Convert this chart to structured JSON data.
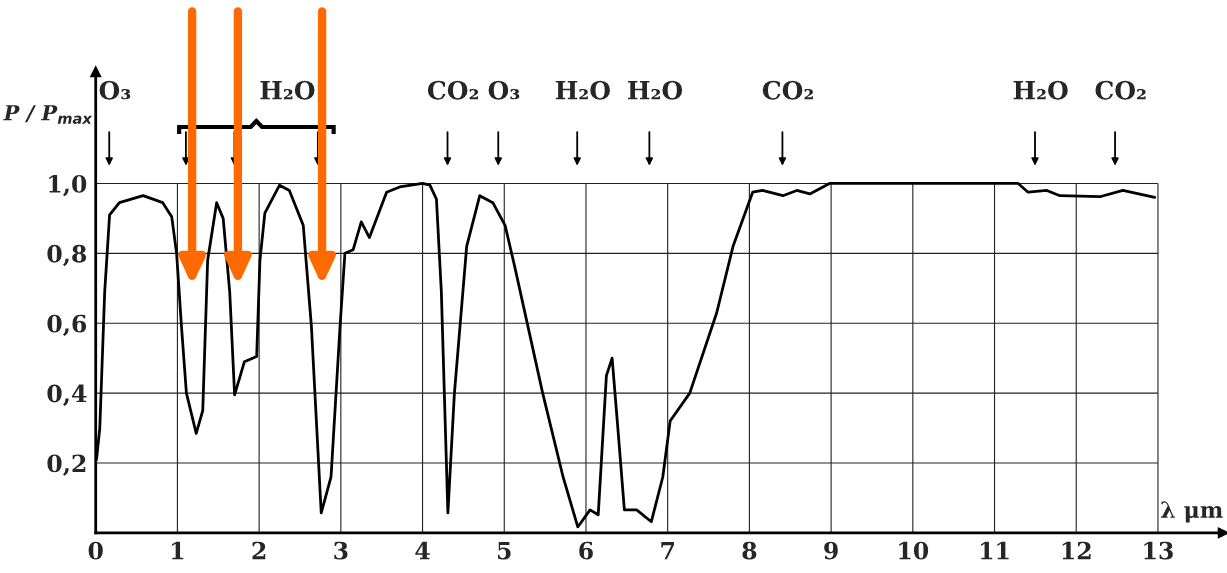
{
  "chart_data": {
    "type": "line",
    "ylabel": "P / P$_{max}$",
    "xlabel": "λ μm",
    "series": [
      {
        "color": "#000000",
        "x": [
          0.01,
          0.05,
          0.11,
          0.17,
          0.29,
          0.58,
          0.82,
          0.93,
          0.99,
          1.05,
          1.11,
          1.23,
          1.31,
          1.37,
          1.48,
          1.56,
          1.64,
          1.7,
          1.82,
          1.97,
          2.01,
          2.07,
          2.25,
          2.37,
          2.54,
          2.64,
          2.76,
          2.88,
          2.99,
          3.05,
          3.15,
          3.25,
          3.35,
          3.56,
          3.72,
          4.0,
          4.09,
          4.17,
          4.23,
          4.31,
          4.39,
          4.54,
          4.7,
          4.86,
          5.01,
          5.13,
          5.47,
          5.72,
          5.9,
          6.05,
          6.15,
          6.25,
          6.32,
          6.39,
          6.47,
          6.62,
          6.8,
          6.94,
          7.03,
          7.27,
          7.6,
          7.8,
          8.04,
          8.16,
          8.41,
          8.58,
          8.74,
          8.98,
          11.29,
          11.41,
          11.64,
          11.8,
          12.29,
          12.57,
          12.96
        ],
        "values": [
          0.21,
          0.3,
          0.69,
          0.91,
          0.945,
          0.965,
          0.945,
          0.905,
          0.8,
          0.59,
          0.4,
          0.285,
          0.35,
          0.78,
          0.945,
          0.9,
          0.69,
          0.395,
          0.49,
          0.505,
          0.78,
          0.915,
          0.995,
          0.98,
          0.88,
          0.59,
          0.057,
          0.16,
          0.59,
          0.8,
          0.81,
          0.89,
          0.845,
          0.975,
          0.99,
          1.0,
          0.995,
          0.955,
          0.69,
          0.057,
          0.4,
          0.82,
          0.965,
          0.945,
          0.88,
          0.76,
          0.4,
          0.16,
          0.017,
          0.066,
          0.052,
          0.45,
          0.5,
          0.3,
          0.066,
          0.066,
          0.032,
          0.16,
          0.32,
          0.4,
          0.63,
          0.82,
          0.975,
          0.98,
          0.965,
          0.98,
          0.97,
          1.0,
          1.0,
          0.975,
          0.98,
          0.965,
          0.962,
          0.98,
          0.96
        ]
      }
    ],
    "xlim": [
      0,
      13.8
    ],
    "ylim": [
      0,
      1.32
    ],
    "xticks": [
      0,
      1,
      2,
      3,
      4,
      5,
      6,
      7,
      8,
      9,
      10,
      11,
      12,
      13
    ],
    "yticks": [
      {
        "value": 0.2,
        "label": "0,2"
      },
      {
        "value": 0.4,
        "label": "0,4"
      },
      {
        "value": 0.6,
        "label": "0,6"
      },
      {
        "value": 0.8,
        "label": "0,8"
      },
      {
        "value": 1.0,
        "label": "1,0"
      }
    ],
    "grid": true,
    "marker": "none",
    "line_style": "solid",
    "annotations": [
      "O₃",
      "H₂O",
      "CO₂",
      "O₃",
      "H₂O",
      "H₂O",
      "CO₂",
      "H₂O",
      "CO₂"
    ]
  }
}
